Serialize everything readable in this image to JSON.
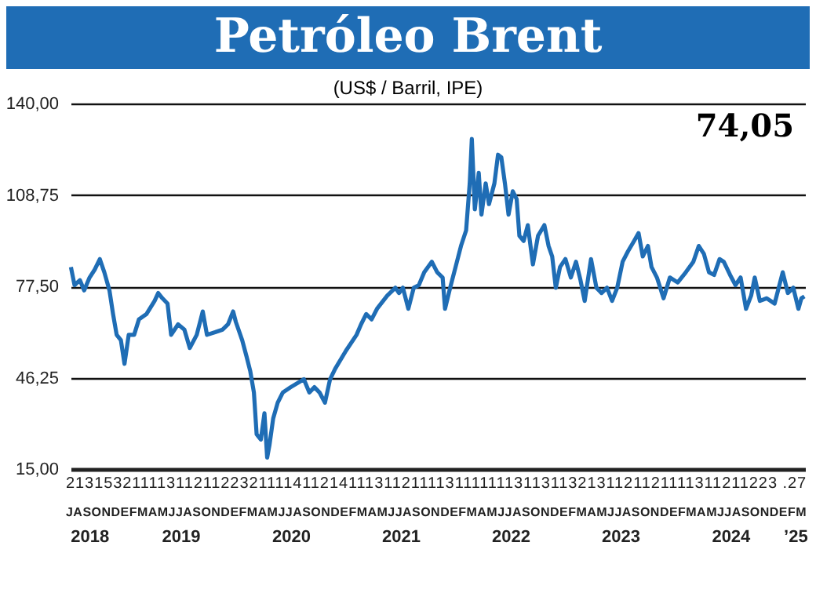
{
  "chart_data": {
    "type": "line",
    "title": "Petróleo Brent",
    "subtitle": "(US$ / Barril, IPE)",
    "x": [
      "2018-07-16",
      "2018-07-28",
      "2018-08-15",
      "2018-08-29",
      "2018-09-16",
      "2018-10-03",
      "2018-10-20",
      "2018-11-04",
      "2018-11-21",
      "2018-12-03",
      "2018-12-15",
      "2018-12-29",
      "2019-01-10",
      "2019-01-24",
      "2019-02-11",
      "2019-02-27",
      "2019-03-24",
      "2019-04-20",
      "2019-05-02",
      "2019-05-16",
      "2019-06-02",
      "2019-06-14",
      "2019-07-07",
      "2019-07-28",
      "2019-08-15",
      "2019-09-07",
      "2019-09-27",
      "2019-10-11",
      "2019-11-07",
      "2019-12-02",
      "2019-12-20",
      "2020-01-06",
      "2020-01-15",
      "2020-02-05",
      "2020-02-19",
      "2020-03-03",
      "2020-03-15",
      "2020-03-24",
      "2020-04-07",
      "2020-04-19",
      "2020-04-28",
      "2020-05-06",
      "2020-05-18",
      "2020-06-02",
      "2020-06-19",
      "2020-07-15",
      "2020-08-28",
      "2020-09-15",
      "2020-10-02",
      "2020-10-19",
      "2020-11-06",
      "2020-11-23",
      "2020-12-10",
      "2021-01-15",
      "2021-02-19",
      "2021-03-06",
      "2021-03-23",
      "2021-04-10",
      "2021-04-28",
      "2021-06-01",
      "2021-06-28",
      "2021-07-10",
      "2021-07-23",
      "2021-08-10",
      "2021-08-28",
      "2021-09-14",
      "2021-10-02",
      "2021-10-27",
      "2021-11-14",
      "2021-12-02",
      "2021-12-10",
      "2021-12-27",
      "2022-01-14",
      "2022-02-01",
      "2022-02-18",
      "2022-03-02",
      "2022-03-09",
      "2022-03-19",
      "2022-04-01",
      "2022-04-10",
      "2022-04-24",
      "2022-05-05",
      "2022-05-23",
      "2022-06-04",
      "2022-06-15",
      "2022-06-27",
      "2022-07-09",
      "2022-07-23",
      "2022-08-05",
      "2022-08-14",
      "2022-08-28",
      "2022-09-11",
      "2022-09-28",
      "2022-10-15",
      "2022-11-05",
      "2022-11-19",
      "2022-12-01",
      "2022-12-13",
      "2022-12-27",
      "2023-01-14",
      "2023-02-01",
      "2023-02-18",
      "2023-03-05",
      "2023-03-19",
      "2023-04-09",
      "2023-04-27",
      "2023-05-14",
      "2023-06-01",
      "2023-06-18",
      "2023-07-05",
      "2023-07-23",
      "2023-08-10",
      "2023-08-30",
      "2023-09-14",
      "2023-09-28",
      "2023-10-15",
      "2023-10-27",
      "2023-11-14",
      "2023-12-06",
      "2023-12-27",
      "2024-01-22",
      "2024-02-18",
      "2024-03-14",
      "2024-04-01",
      "2024-04-18",
      "2024-05-05",
      "2024-05-22",
      "2024-06-09",
      "2024-06-23",
      "2024-07-14",
      "2024-08-01",
      "2024-08-18",
      "2024-09-05",
      "2024-09-22",
      "2024-10-04",
      "2024-10-21",
      "2024-11-13",
      "2024-12-09",
      "2025-01-05",
      "2025-01-22",
      "2025-02-09",
      "2025-02-26",
      "2025-03-08",
      "2025-03-18"
    ],
    "series": [
      {
        "color": "#1f6db5",
        "values": [
          84.1,
          77.9,
          79.6,
          76.1,
          80.5,
          83.2,
          86.8,
          82.3,
          76.1,
          68.0,
          60.9,
          59.1,
          51.0,
          60.9,
          60.9,
          66.2,
          68.0,
          72.5,
          75.2,
          73.4,
          71.6,
          60.9,
          64.5,
          62.7,
          56.4,
          60.9,
          68.9,
          60.9,
          61.8,
          62.7,
          64.5,
          68.9,
          65.3,
          59.1,
          53.7,
          48.4,
          41.2,
          26.9,
          25.1,
          34.1,
          18.9,
          23.4,
          32.3,
          37.7,
          41.2,
          43.0,
          45.7,
          41.2,
          43.0,
          41.2,
          37.7,
          45.7,
          49.3,
          55.5,
          60.9,
          64.5,
          68.0,
          66.2,
          69.8,
          74.3,
          77.0,
          75.2,
          77.0,
          69.8,
          77.0,
          77.9,
          82.3,
          85.9,
          82.3,
          80.5,
          69.8,
          77.0,
          84.1,
          91.3,
          96.6,
          112.7,
          127.9,
          103.8,
          116.3,
          102.0,
          112.7,
          105.6,
          112.7,
          122.5,
          121.6,
          112.7,
          102.0,
          110.0,
          107.3,
          94.8,
          93.0,
          98.4,
          85.0,
          94.8,
          98.4,
          91.3,
          87.7,
          77.0,
          84.1,
          86.8,
          80.5,
          85.9,
          79.6,
          72.5,
          86.8,
          77.0,
          75.2,
          77.0,
          72.5,
          77.0,
          85.9,
          89.5,
          93.0,
          95.7,
          87.7,
          91.3,
          84.1,
          80.5,
          73.4,
          80.5,
          78.8,
          82.3,
          85.9,
          91.3,
          88.6,
          82.3,
          81.4,
          86.8,
          85.9,
          81.4,
          77.9,
          80.5,
          69.8,
          74.3,
          80.5,
          72.5,
          73.4,
          71.6,
          82.3,
          75.2,
          77.0,
          69.8,
          73.4,
          74.05
        ]
      }
    ],
    "xlim": [
      "2018-07-15",
      "2025-03-20"
    ],
    "ylim": [
      15,
      140
    ],
    "yticks": [
      {
        "value": 15,
        "label": "15,00"
      },
      {
        "value": 46.25,
        "label": "46,25"
      },
      {
        "value": 77.5,
        "label": "77,50"
      },
      {
        "value": 108.75,
        "label": "108,75"
      },
      {
        "value": 140,
        "label": "140,00"
      }
    ],
    "xticks": [
      {
        "value": "2018-09-15",
        "label": "2018"
      },
      {
        "value": "2019-07-15",
        "label": "2019"
      },
      {
        "value": "2020-07-15",
        "label": "2020"
      },
      {
        "value": "2021-07-15",
        "label": "2021"
      },
      {
        "value": "2022-07-15",
        "label": "2022"
      },
      {
        "value": "2023-07-15",
        "label": "2023"
      },
      {
        "value": "2024-07-15",
        "label": "2024"
      },
      {
        "value": "2025-02-15",
        "label": "’25"
      }
    ],
    "grid": "y",
    "annotations": [
      "74,05",
      "2131532111131121122321111411214111311211113111111131131132131121121111311211223 .27",
      "JASONDEFMAMJJASONDEFMAMJJASONDEFMAMJJASONDEFMAMJJASONDEFMAMJJASONDEFMAMJJASONDEFM"
    ]
  }
}
